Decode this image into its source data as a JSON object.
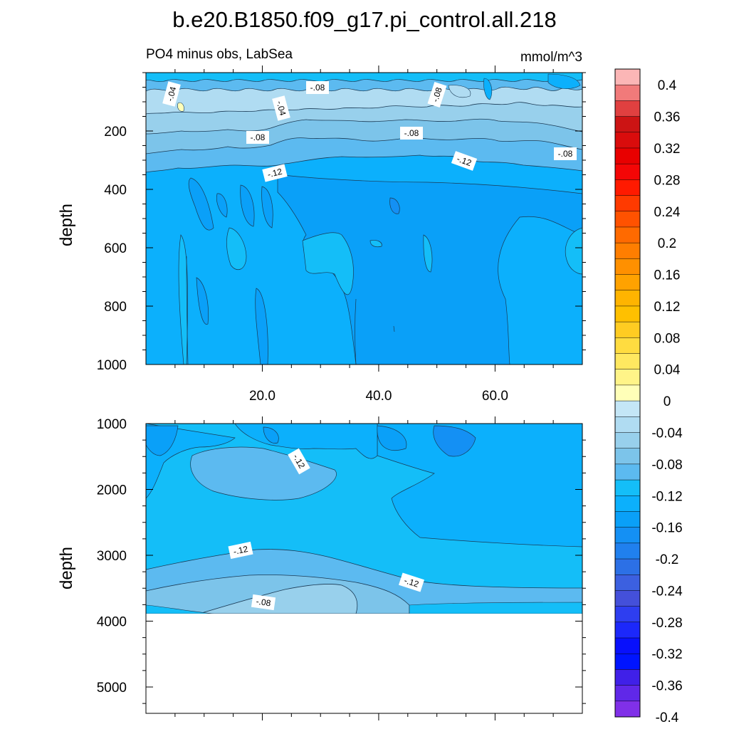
{
  "title": "b.e20.B1850.f09_g17.pi_control.all.218",
  "subtitle_left": "PO4 minus obs, LabSea",
  "subtitle_right": "mmol/m^3",
  "chart_data": [
    {
      "type": "heatmap",
      "panel": "upper",
      "ylabel": "depth",
      "ylim": [
        1000,
        0
      ],
      "xlim": [
        0,
        75
      ],
      "x_tick_labels": [
        "20.0",
        "40.0",
        "60.0"
      ],
      "x_ticks": [
        20,
        40,
        60
      ],
      "y_tick_labels": [
        "200",
        "400",
        "600",
        "800",
        "1000"
      ],
      "y_ticks": [
        200,
        400,
        600,
        800,
        1000
      ],
      "contour_labels": [
        "-.04",
        "-.08",
        "-.04",
        "-.08",
        "-.08",
        "-.08",
        "-.12",
        "-.12",
        "-.08"
      ],
      "field_description": "near-surface values around -0.04 to -0.08, mostly -0.12 to -0.16 below 300 m"
    },
    {
      "type": "heatmap",
      "panel": "lower",
      "ylabel": "depth",
      "ylim": [
        5400,
        1000
      ],
      "xlim": [
        0,
        75
      ],
      "y_tick_labels": [
        "1000",
        "2000",
        "3000",
        "4000",
        "5000"
      ],
      "y_ticks": [
        1000,
        2000,
        3000,
        4000,
        5000
      ],
      "contour_labels": [
        "-.12",
        "-.12",
        "-.12",
        "-.08"
      ],
      "data_bottom_depth": 3870
    }
  ],
  "colorbar": {
    "labels": [
      "0.4",
      "0.36",
      "0.32",
      "0.28",
      "0.24",
      "0.2",
      "0.16",
      "0.12",
      "0.08",
      "0.04",
      "0",
      "-0.04",
      "-0.08",
      "-0.12",
      "-0.16",
      "-0.2",
      "-0.24",
      "-0.28",
      "-0.32",
      "-0.36",
      "-0.4"
    ],
    "colors_top_to_bottom": [
      "#fbb6b6",
      "#f17a7a",
      "#e04040",
      "#cc1414",
      "#d90c0c",
      "#e80000",
      "#f40606",
      "#ff1a00",
      "#ff3a00",
      "#ff5200",
      "#ff6a00",
      "#ff7e00",
      "#ff9000",
      "#ffa200",
      "#ffb400",
      "#ffc000",
      "#ffcc22",
      "#ffdc40",
      "#ffe860",
      "#fff488",
      "#ffffb8",
      "#c4e6f6",
      "#b0dcf2",
      "#98d0ec",
      "#7cc4ea",
      "#5cbaf0",
      "#14bef8",
      "#0cb0fc",
      "#0aa0f8",
      "#1490f4",
      "#2080ee",
      "#2c70e6",
      "#3c60e0",
      "#4450da",
      "#2e3ef0",
      "#1c28fa",
      "#0810fc",
      "#0014ff",
      "#4020e8",
      "#6028e8",
      "#8030e8"
    ]
  },
  "colors": {
    "v_m04": "#b0dcf2",
    "v_m06": "#98d0ec",
    "v_m08": "#7cc4ea",
    "v_m10": "#5cbaf0",
    "v_m12": "#14bef8",
    "v_m14": "#0cb0fc",
    "v_m16": "#0aa0f8",
    "v_m18": "#1490f4",
    "v_0": "#ffffb8",
    "v_02": "#fff488"
  }
}
